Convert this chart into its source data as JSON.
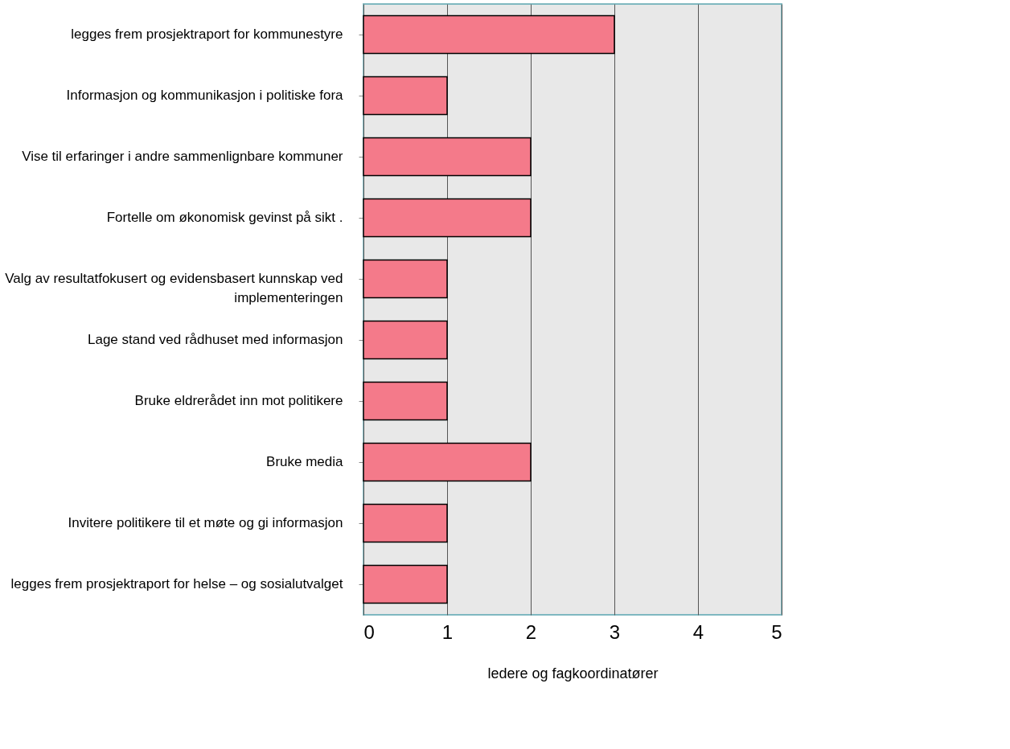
{
  "chart_data": {
    "type": "bar",
    "orientation": "horizontal",
    "xlabel": "ledere og fagkoordinatører",
    "categories": [
      "legges frem prosjektraport for kommunestyre",
      "Informasjon og kommunikasjon i politiske fora",
      "Vise til erfaringer i andre sammenlignbare kommuner",
      "Fortelle om økonomisk gevinst på sikt .",
      "Valg av resultatfokusert og evidensbasert kunnskap ved\nimplementeringen",
      "Lage stand ved rådhuset med informasjon",
      "Bruke eldrerådet inn mot politikere",
      "Bruke media",
      "Invitere politikere til et møte og gi informasjon",
      "legges frem prosjektraport for helse – og sosialutvalget"
    ],
    "values": [
      3,
      1,
      2,
      2,
      1,
      1,
      1,
      2,
      1,
      1
    ],
    "color": "#f47a8a",
    "xlim": [
      0,
      5
    ],
    "xticks": [
      0,
      1,
      2,
      3,
      4,
      5
    ],
    "grid": "x"
  }
}
